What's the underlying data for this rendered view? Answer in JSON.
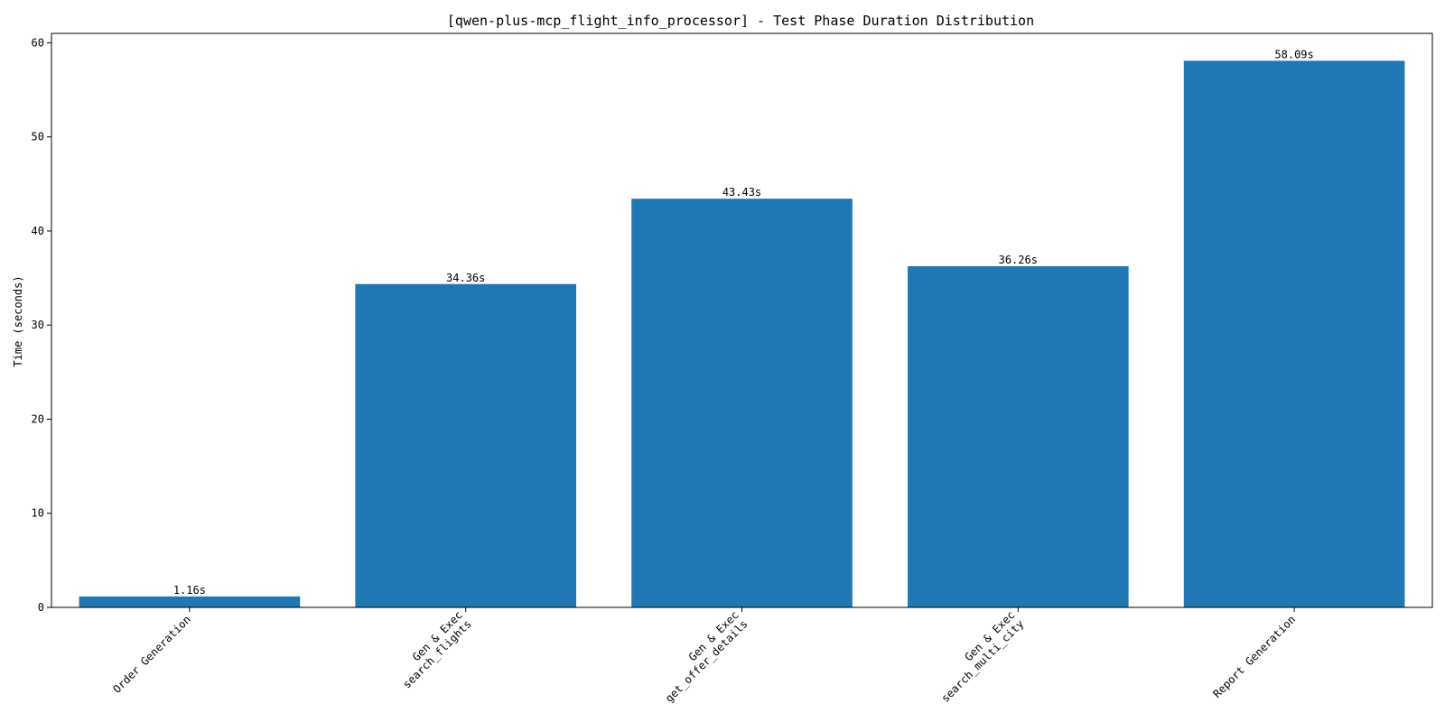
{
  "chart_data": {
    "type": "bar",
    "title": "[qwen-plus-mcp_flight_info_processor] - Test Phase Duration Distribution",
    "xlabel": "",
    "ylabel": "Time (seconds)",
    "ylim": [
      0,
      61
    ],
    "yticks": [
      0,
      10,
      20,
      30,
      40,
      50,
      60
    ],
    "grid": false,
    "categories": [
      [
        "Order Generation"
      ],
      [
        "Gen & Exec",
        "search_flights"
      ],
      [
        "Gen & Exec",
        "get_offer_details"
      ],
      [
        "Gen & Exec",
        "search_multi_city"
      ],
      [
        "Report Generation"
      ]
    ],
    "values": [
      1.16,
      34.36,
      43.43,
      36.26,
      58.09
    ],
    "data_labels": [
      "1.16s",
      "34.36s",
      "43.43s",
      "36.26s",
      "58.09s"
    ],
    "bar_color": "#1f77b4"
  }
}
